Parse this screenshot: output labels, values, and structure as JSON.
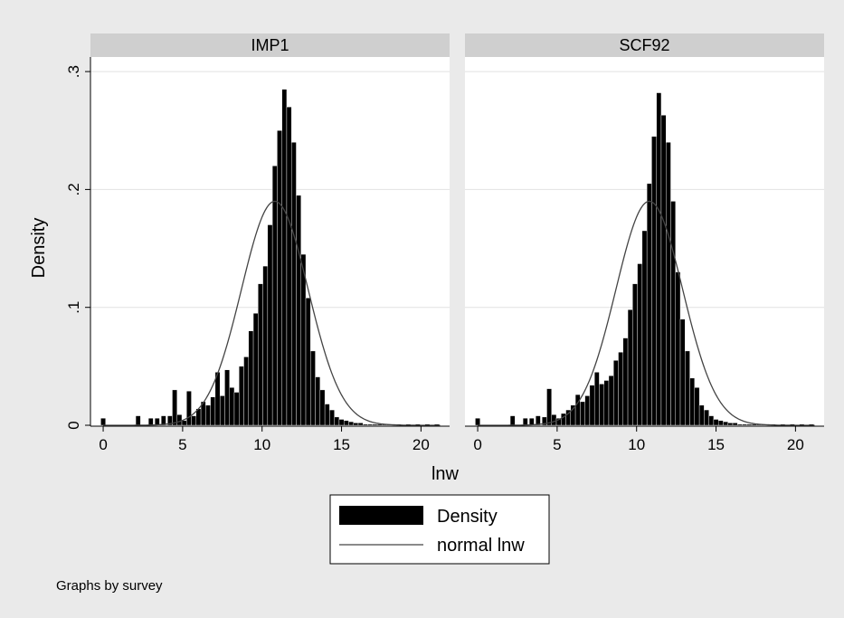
{
  "chart_data": {
    "type": "bar",
    "ylabel": "Density",
    "xlabel": "lnw",
    "note": "Graphs by survey",
    "bin_width": 0.3,
    "xlim": [
      -0.8,
      21.8
    ],
    "ylim": [
      0,
      0.3
    ],
    "x_ticks": [
      0,
      5,
      10,
      15,
      20
    ],
    "y_ticks": [
      {
        "value": 0,
        "label": "0"
      },
      {
        "value": 0.1,
        "label": ".1"
      },
      {
        "value": 0.2,
        "label": ".2"
      },
      {
        "value": 0.3,
        "label": ".3"
      }
    ],
    "grid": true,
    "legend": {
      "position": "bottom",
      "items": [
        {
          "label": "Density",
          "kind": "bar"
        },
        {
          "label": "normal lnw",
          "kind": "line"
        }
      ]
    },
    "normal_fit": {
      "mean": 10.8,
      "sd": 2.1
    },
    "colors": {
      "bars": "#000000",
      "line": "#444444",
      "panel_header": "#cfcfcf",
      "plot_bg": "#ffffff",
      "outer_bg": "#eaeaea"
    },
    "panels": [
      {
        "title": "IMP1",
        "bars": [
          [
            0,
            0.006
          ],
          [
            2.2,
            0.008
          ],
          [
            3.0,
            0.006
          ],
          [
            3.4,
            0.006
          ],
          [
            3.8,
            0.008
          ],
          [
            4.2,
            0.008
          ],
          [
            4.5,
            0.03
          ],
          [
            4.8,
            0.009
          ],
          [
            5.1,
            0.004
          ],
          [
            5.4,
            0.029
          ],
          [
            5.7,
            0.008
          ],
          [
            6.0,
            0.014
          ],
          [
            6.3,
            0.02
          ],
          [
            6.6,
            0.017
          ],
          [
            6.9,
            0.024
          ],
          [
            7.2,
            0.045
          ],
          [
            7.5,
            0.025
          ],
          [
            7.8,
            0.047
          ],
          [
            8.1,
            0.032
          ],
          [
            8.4,
            0.028
          ],
          [
            8.7,
            0.05
          ],
          [
            9.0,
            0.058
          ],
          [
            9.3,
            0.08
          ],
          [
            9.6,
            0.095
          ],
          [
            9.9,
            0.12
          ],
          [
            10.2,
            0.135
          ],
          [
            10.5,
            0.17
          ],
          [
            10.8,
            0.22
          ],
          [
            11.1,
            0.25
          ],
          [
            11.4,
            0.285
          ],
          [
            11.7,
            0.27
          ],
          [
            12.0,
            0.24
          ],
          [
            12.3,
            0.195
          ],
          [
            12.6,
            0.145
          ],
          [
            12.9,
            0.108
          ],
          [
            13.2,
            0.063
          ],
          [
            13.5,
            0.041
          ],
          [
            13.8,
            0.03
          ],
          [
            14.1,
            0.018
          ],
          [
            14.4,
            0.013
          ],
          [
            14.7,
            0.007
          ],
          [
            15.0,
            0.005
          ],
          [
            15.3,
            0.004
          ],
          [
            15.6,
            0.003
          ],
          [
            15.9,
            0.002
          ],
          [
            16.2,
            0.002
          ],
          [
            16.5,
            0.001
          ],
          [
            16.8,
            0.001
          ],
          [
            17.1,
            0.001
          ],
          [
            17.4,
            0.001
          ],
          [
            17.7,
            0.001
          ],
          [
            18.0,
            0.001
          ],
          [
            18.3,
            0.001
          ],
          [
            18.6,
            0.001
          ],
          [
            19.2,
            0.001
          ],
          [
            19.8,
            0.001
          ],
          [
            20.4,
            0.001
          ],
          [
            21.0,
            0.001
          ]
        ]
      },
      {
        "title": "SCF92",
        "bars": [
          [
            0,
            0.006
          ],
          [
            2.2,
            0.008
          ],
          [
            3.0,
            0.006
          ],
          [
            3.4,
            0.006
          ],
          [
            3.8,
            0.008
          ],
          [
            4.2,
            0.007
          ],
          [
            4.5,
            0.031
          ],
          [
            4.8,
            0.009
          ],
          [
            5.1,
            0.006
          ],
          [
            5.4,
            0.01
          ],
          [
            5.7,
            0.013
          ],
          [
            6.0,
            0.017
          ],
          [
            6.3,
            0.026
          ],
          [
            6.6,
            0.02
          ],
          [
            6.9,
            0.025
          ],
          [
            7.2,
            0.034
          ],
          [
            7.5,
            0.045
          ],
          [
            7.8,
            0.035
          ],
          [
            8.1,
            0.038
          ],
          [
            8.4,
            0.042
          ],
          [
            8.7,
            0.055
          ],
          [
            9.0,
            0.062
          ],
          [
            9.3,
            0.074
          ],
          [
            9.6,
            0.098
          ],
          [
            9.9,
            0.12
          ],
          [
            10.2,
            0.137
          ],
          [
            10.5,
            0.165
          ],
          [
            10.8,
            0.205
          ],
          [
            11.1,
            0.245
          ],
          [
            11.4,
            0.282
          ],
          [
            11.7,
            0.263
          ],
          [
            12.0,
            0.24
          ],
          [
            12.3,
            0.19
          ],
          [
            12.6,
            0.13
          ],
          [
            12.9,
            0.09
          ],
          [
            13.2,
            0.063
          ],
          [
            13.5,
            0.04
          ],
          [
            13.8,
            0.032
          ],
          [
            14.1,
            0.017
          ],
          [
            14.4,
            0.013
          ],
          [
            14.7,
            0.008
          ],
          [
            15.0,
            0.005
          ],
          [
            15.3,
            0.004
          ],
          [
            15.6,
            0.003
          ],
          [
            15.9,
            0.002
          ],
          [
            16.2,
            0.002
          ],
          [
            16.5,
            0.001
          ],
          [
            16.8,
            0.001
          ],
          [
            17.1,
            0.001
          ],
          [
            17.4,
            0.001
          ],
          [
            17.7,
            0.001
          ],
          [
            18.0,
            0.001
          ],
          [
            18.3,
            0.001
          ],
          [
            18.6,
            0.001
          ],
          [
            19.2,
            0.001
          ],
          [
            19.8,
            0.001
          ],
          [
            20.4,
            0.001
          ],
          [
            21.0,
            0.001
          ]
        ]
      }
    ]
  }
}
